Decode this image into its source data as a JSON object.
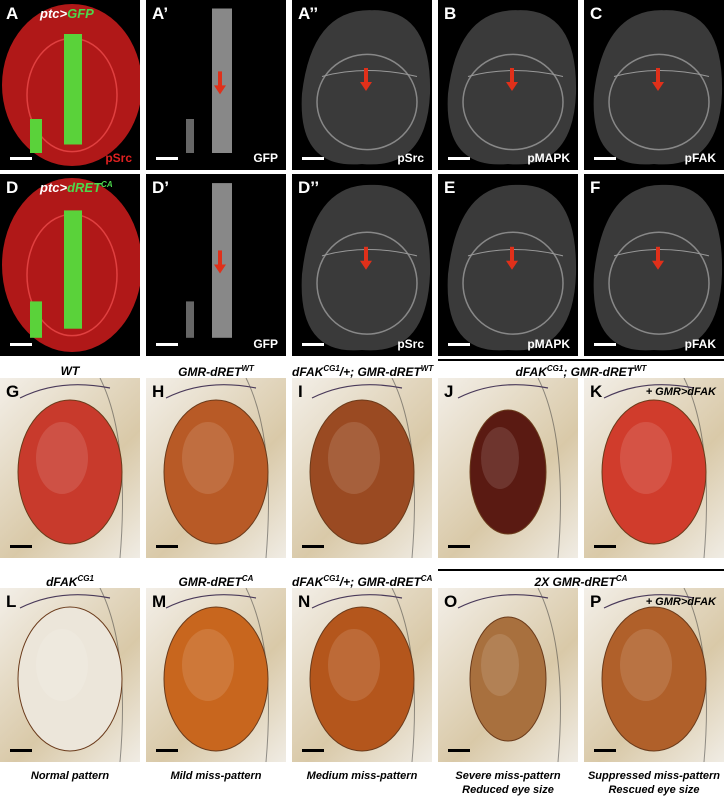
{
  "wing_discs": {
    "rows": [
      [
        {
          "label": "A",
          "stain": "pSrc",
          "title": [
            "ptc>",
            "GFP"
          ]
        },
        {
          "label": "A’",
          "stain": "GFP"
        },
        {
          "label": "A’’",
          "stain": "pSrc"
        },
        {
          "label": "B",
          "stain": "pMAPK"
        },
        {
          "label": "C",
          "stain": "pFAK"
        }
      ],
      [
        {
          "label": "D",
          "title": [
            "ptc>",
            "dRET",
            {
              "sup": "CA"
            }
          ]
        },
        {
          "label": "D’",
          "stain": "GFP"
        },
        {
          "label": "D’’",
          "stain": "pSrc"
        },
        {
          "label": "E",
          "stain": "pMAPK"
        },
        {
          "label": "F",
          "stain": "pFAK"
        }
      ]
    ]
  },
  "eyes": {
    "rows": [
      {
        "panels": [
          {
            "label": "G",
            "title": [
              "WT"
            ]
          },
          {
            "label": "H",
            "title": [
              "GMR-dRET",
              {
                "sup": "WT"
              }
            ]
          },
          {
            "label": "I",
            "title": [
              "dFAK",
              {
                "sup": "CG1"
              },
              "/+; GMR-dRET",
              {
                "sup": "WT"
              }
            ]
          },
          {
            "label": "J"
          },
          {
            "label": "K",
            "inset": "+ GMR>dFAK"
          }
        ],
        "group_title": [
          "dFAK",
          {
            "sup": "CG1"
          },
          "; GMR-dRET",
          {
            "sup": "WT"
          }
        ]
      },
      {
        "panels": [
          {
            "label": "L",
            "title": [
              "dFAK",
              {
                "sup": "CG1"
              }
            ]
          },
          {
            "label": "M",
            "title": [
              "GMR-dRET",
              {
                "sup": "CA"
              }
            ]
          },
          {
            "label": "N",
            "title": [
              "dFAK",
              {
                "sup": "CG1"
              },
              "/+; GMR-dRET",
              {
                "sup": "CA"
              }
            ]
          },
          {
            "label": "O"
          },
          {
            "label": "P",
            "inset": "+ GMR>dFAK"
          }
        ],
        "group_title": [
          "2X GMR-dRET",
          {
            "sup": "CA"
          }
        ]
      }
    ],
    "captions": [
      [
        "Normal pattern"
      ],
      [
        "Mild miss-pattern"
      ],
      [
        "Medium miss-pattern"
      ],
      [
        "Severe miss-pattern",
        "Reduced eye size"
      ],
      [
        "Suppressed miss-pattern",
        "Rescued eye size"
      ]
    ]
  }
}
